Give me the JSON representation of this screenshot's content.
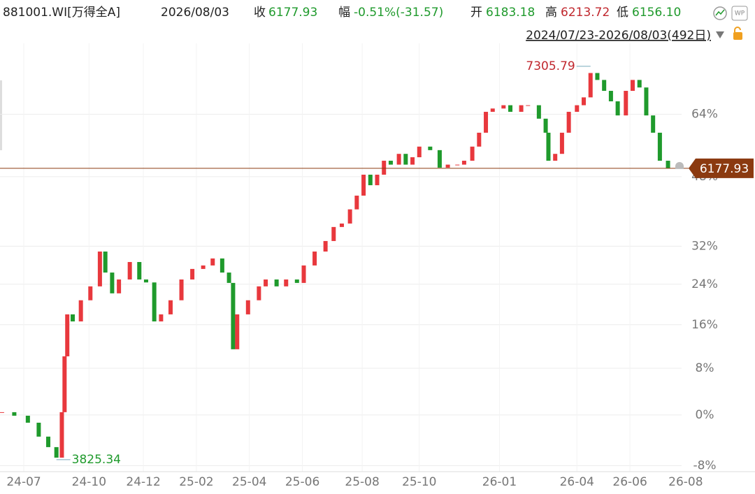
{
  "header": {
    "code": "881001.WI[万得全A]",
    "date": "2026/08/03",
    "close_label": "收",
    "close": "6177.93",
    "change_label": "幅",
    "change": "-0.51%(-31.57)",
    "open_label": "开",
    "open": "6183.18",
    "high_label": "高",
    "high": "6213.72",
    "low_label": "低",
    "low": "6156.10",
    "range": "2024/07/23-2026/08/03(492日)",
    "badge": "WP"
  },
  "chart_data": {
    "type": "candlestick",
    "x": [
      0,
      9,
      19,
      27,
      34,
      40,
      44,
      46,
      48,
      52,
      58,
      65,
      72,
      76,
      81,
      86,
      94,
      101,
      106,
      112,
      117,
      124,
      132,
      140,
      148,
      155,
      162,
      167,
      170,
      173,
      181,
      189,
      194,
      202,
      209,
      217,
      222,
      230,
      238,
      244,
      250,
      256,
      261,
      266,
      271,
      276,
      281,
      286,
      292,
      297,
      302,
      307,
      315,
      322,
      328,
      335,
      340,
      346,
      351,
      356,
      361,
      369,
      374,
      382,
      387,
      395,
      400,
      402,
      407,
      412,
      417,
      423,
      428,
      433,
      438,
      443,
      448,
      453,
      459,
      464,
      469,
      474,
      479,
      484,
      490
    ],
    "close": [
      4136,
      4112,
      4065,
      3973,
      3905,
      3838,
      4136,
      4534,
      4858,
      4802,
      4972,
      5087,
      5387,
      5204,
      5029,
      5145,
      5295,
      5145,
      5120,
      4802,
      4858,
      4972,
      5145,
      5235,
      5265,
      5326,
      5204,
      5116,
      4587,
      4858,
      4972,
      5087,
      5145,
      5087,
      5145,
      5116,
      5265,
      5387,
      5481,
      5609,
      5641,
      5774,
      5906,
      6113,
      6008,
      6113,
      6255,
      6215,
      6326,
      6215,
      6291,
      6402,
      6365,
      6184,
      6215,
      6215,
      6255,
      6402,
      6550,
      6779,
      6816,
      6853,
      6779,
      6853,
      6853,
      6703,
      6550,
      6255,
      6326,
      6550,
      6779,
      6853,
      6942,
      7226,
      7144,
      7017,
      6897,
      6739,
      7017,
      7144,
      7056,
      6739,
      6550,
      6255,
      6178
    ],
    "reference_price": 4117,
    "up_color": "#e8383d",
    "down_color": "#1f9a2c",
    "xlim": [
      -1.5,
      500
    ],
    "xticks": [
      {
        "value": 16,
        "label": "24-07"
      },
      {
        "value": 64,
        "label": "24-10"
      },
      {
        "value": 104,
        "label": "24-12"
      },
      {
        "value": 143,
        "label": "25-02"
      },
      {
        "value": 182,
        "label": "25-04"
      },
      {
        "value": 221,
        "label": "25-06"
      },
      {
        "value": 265,
        "label": "25-08"
      },
      {
        "value": 307,
        "label": "25-10"
      },
      {
        "value": 366,
        "label": "26-01"
      },
      {
        "value": 423,
        "label": "26-04"
      },
      {
        "value": 462,
        "label": "26-06"
      },
      {
        "value": 503,
        "label": "26-08"
      }
    ],
    "ylim": [
      -8.9,
      84.3
    ],
    "log_scale": true,
    "yticks": [
      {
        "value": -8,
        "label": "-8%"
      },
      {
        "value": 0,
        "label": "0%"
      },
      {
        "value": 8,
        "label": "8%"
      },
      {
        "value": 16,
        "label": "16%"
      },
      {
        "value": 24,
        "label": "24%"
      },
      {
        "value": 32,
        "label": "32%"
      },
      {
        "value": 48,
        "label": "48%"
      },
      {
        "value": 64,
        "label": "64%"
      }
    ],
    "grid": true,
    "annotations": [
      {
        "x": 433,
        "value": 7305.79,
        "color": "#c0272d"
      },
      {
        "x": 40,
        "value": 3825.34,
        "color": "#1f9a2c"
      }
    ],
    "current_price": 6177.93,
    "current_color": "#8b3a10"
  }
}
